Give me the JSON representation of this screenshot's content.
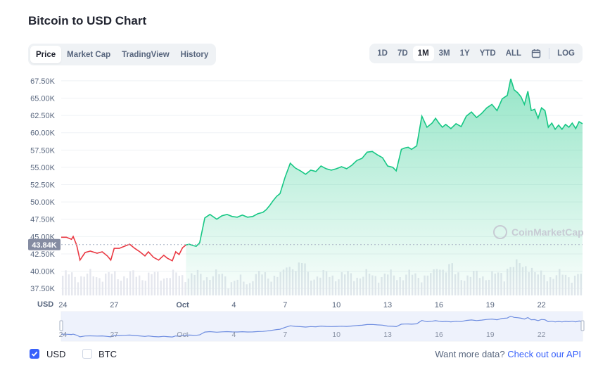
{
  "page": {
    "title": "Bitcoin to USD Chart"
  },
  "tabs": [
    {
      "label": "Price",
      "active": true
    },
    {
      "label": "Market Cap",
      "active": false
    },
    {
      "label": "TradingView",
      "active": false
    },
    {
      "label": "History",
      "active": false
    }
  ],
  "ranges": [
    {
      "label": "1D",
      "active": false
    },
    {
      "label": "7D",
      "active": false
    },
    {
      "label": "1M",
      "active": true
    },
    {
      "label": "3M",
      "active": false
    },
    {
      "label": "1Y",
      "active": false
    },
    {
      "label": "YTD",
      "active": false
    },
    {
      "label": "ALL",
      "active": false
    }
  ],
  "calendar_icon": "calendar-icon",
  "log_label": "LOG",
  "watermark": "CoinMarketCap",
  "colors": {
    "up": "#16c784",
    "down": "#ea3943",
    "accent": "#3861fb",
    "volume": "#e5e7ee",
    "nav_line": "#6e8de0"
  },
  "footer": {
    "usd_label": "USD",
    "usd_checked": true,
    "btc_label": "BTC",
    "btc_checked": false,
    "more_text": "Want more data?",
    "more_link": "Check out our API"
  },
  "chart_data": {
    "type": "area",
    "currency_label": "USD",
    "current_price_label": "43.84K",
    "current_price": 43840,
    "ylim": [
      36500,
      68000
    ],
    "y_ticks": [
      37500,
      40000,
      42500,
      45000,
      47500,
      50000,
      52500,
      55000,
      57500,
      60000,
      62500,
      65000,
      67500
    ],
    "y_tick_labels": [
      "37.50K",
      "40.00K",
      "42.50K",
      "45.00K",
      "47.50K",
      "50.00K",
      "52.50K",
      "55.00K",
      "57.50K",
      "60.00K",
      "62.50K",
      "65.00K",
      "67.50K"
    ],
    "x_range_days": [
      23.9,
      54.4
    ],
    "x_ticks": [
      24,
      27,
      31,
      34,
      37,
      40,
      43,
      46,
      49,
      52
    ],
    "x_tick_labels": [
      "24",
      "27",
      "Oct",
      "4",
      "7",
      "10",
      "13",
      "16",
      "19",
      "22"
    ],
    "x_unit": "days from Sep 1",
    "series": [
      {
        "x": [
          23.9,
          24.2,
          24.5,
          24.6,
          24.8,
          25.0,
          25.3,
          25.6,
          26.0,
          26.3,
          26.6,
          26.8,
          27.0,
          27.3,
          27.6,
          27.9,
          28.2,
          28.5,
          28.8,
          29.0,
          29.3,
          29.6,
          29.9,
          30.1,
          30.4,
          30.6,
          30.8,
          31.0,
          31.2,
          31.4,
          31.6,
          31.8,
          32.0,
          32.3,
          32.6,
          33.0,
          33.3,
          33.6,
          33.9,
          34.2,
          34.5,
          34.8,
          35.1,
          35.4,
          35.7,
          35.9,
          36.1,
          36.3,
          36.5,
          36.7,
          37.0,
          37.3,
          37.6,
          37.9,
          38.2,
          38.5,
          38.8,
          39.1,
          39.4,
          39.7,
          40.0,
          40.3,
          40.6,
          40.9,
          41.2,
          41.5,
          41.8,
          42.1,
          42.4,
          42.7,
          43.0,
          43.3,
          43.5,
          43.8,
          44.0,
          44.2,
          44.4,
          44.7,
          45.0,
          45.3,
          45.6,
          45.8,
          46.0,
          46.2,
          46.4,
          46.7,
          47.0,
          47.3,
          47.6,
          47.9,
          48.2,
          48.5,
          48.8,
          49.1,
          49.4,
          49.7,
          50.0,
          50.2,
          50.4,
          50.6,
          50.8,
          51.0,
          51.2,
          51.4,
          51.6,
          51.8,
          52.0,
          52.2,
          52.4,
          52.6,
          52.8,
          53.0,
          53.2,
          53.4,
          53.6,
          53.8,
          54.0,
          54.2,
          54.4
        ],
        "y": [
          44900,
          44900,
          44600,
          45000,
          43800,
          41600,
          42700,
          42900,
          42600,
          42800,
          42200,
          41600,
          43300,
          43300,
          43600,
          43900,
          43300,
          42800,
          42200,
          42800,
          42000,
          41600,
          42300,
          41900,
          41500,
          42800,
          42400,
          43400,
          43800,
          43900,
          43700,
          43600,
          44100,
          47700,
          48200,
          47500,
          48000,
          48200,
          47900,
          47800,
          48100,
          47800,
          47900,
          48300,
          48500,
          48900,
          49500,
          50200,
          50800,
          51200,
          53600,
          55600,
          54900,
          54500,
          54000,
          54600,
          54400,
          55200,
          54800,
          54600,
          54800,
          55100,
          54800,
          55300,
          56000,
          56300,
          57200,
          57300,
          56800,
          56400,
          55200,
          55000,
          54500,
          57600,
          57800,
          57900,
          57600,
          58100,
          62400,
          60800,
          61400,
          62100,
          61400,
          60800,
          61200,
          60600,
          61300,
          60900,
          62400,
          63000,
          62200,
          62800,
          63600,
          64100,
          63200,
          64900,
          65400,
          67800,
          66200,
          65800,
          65200,
          64100,
          66000,
          63200,
          63400,
          62100,
          63600,
          63200,
          60800,
          61400,
          60500,
          61100,
          60500,
          61200,
          60800,
          61400,
          60600,
          61600,
          61300
        ],
        "color_before_2023_09_30": "#ea3943",
        "color_after_2023_09_30": "#16c784"
      }
    ]
  }
}
